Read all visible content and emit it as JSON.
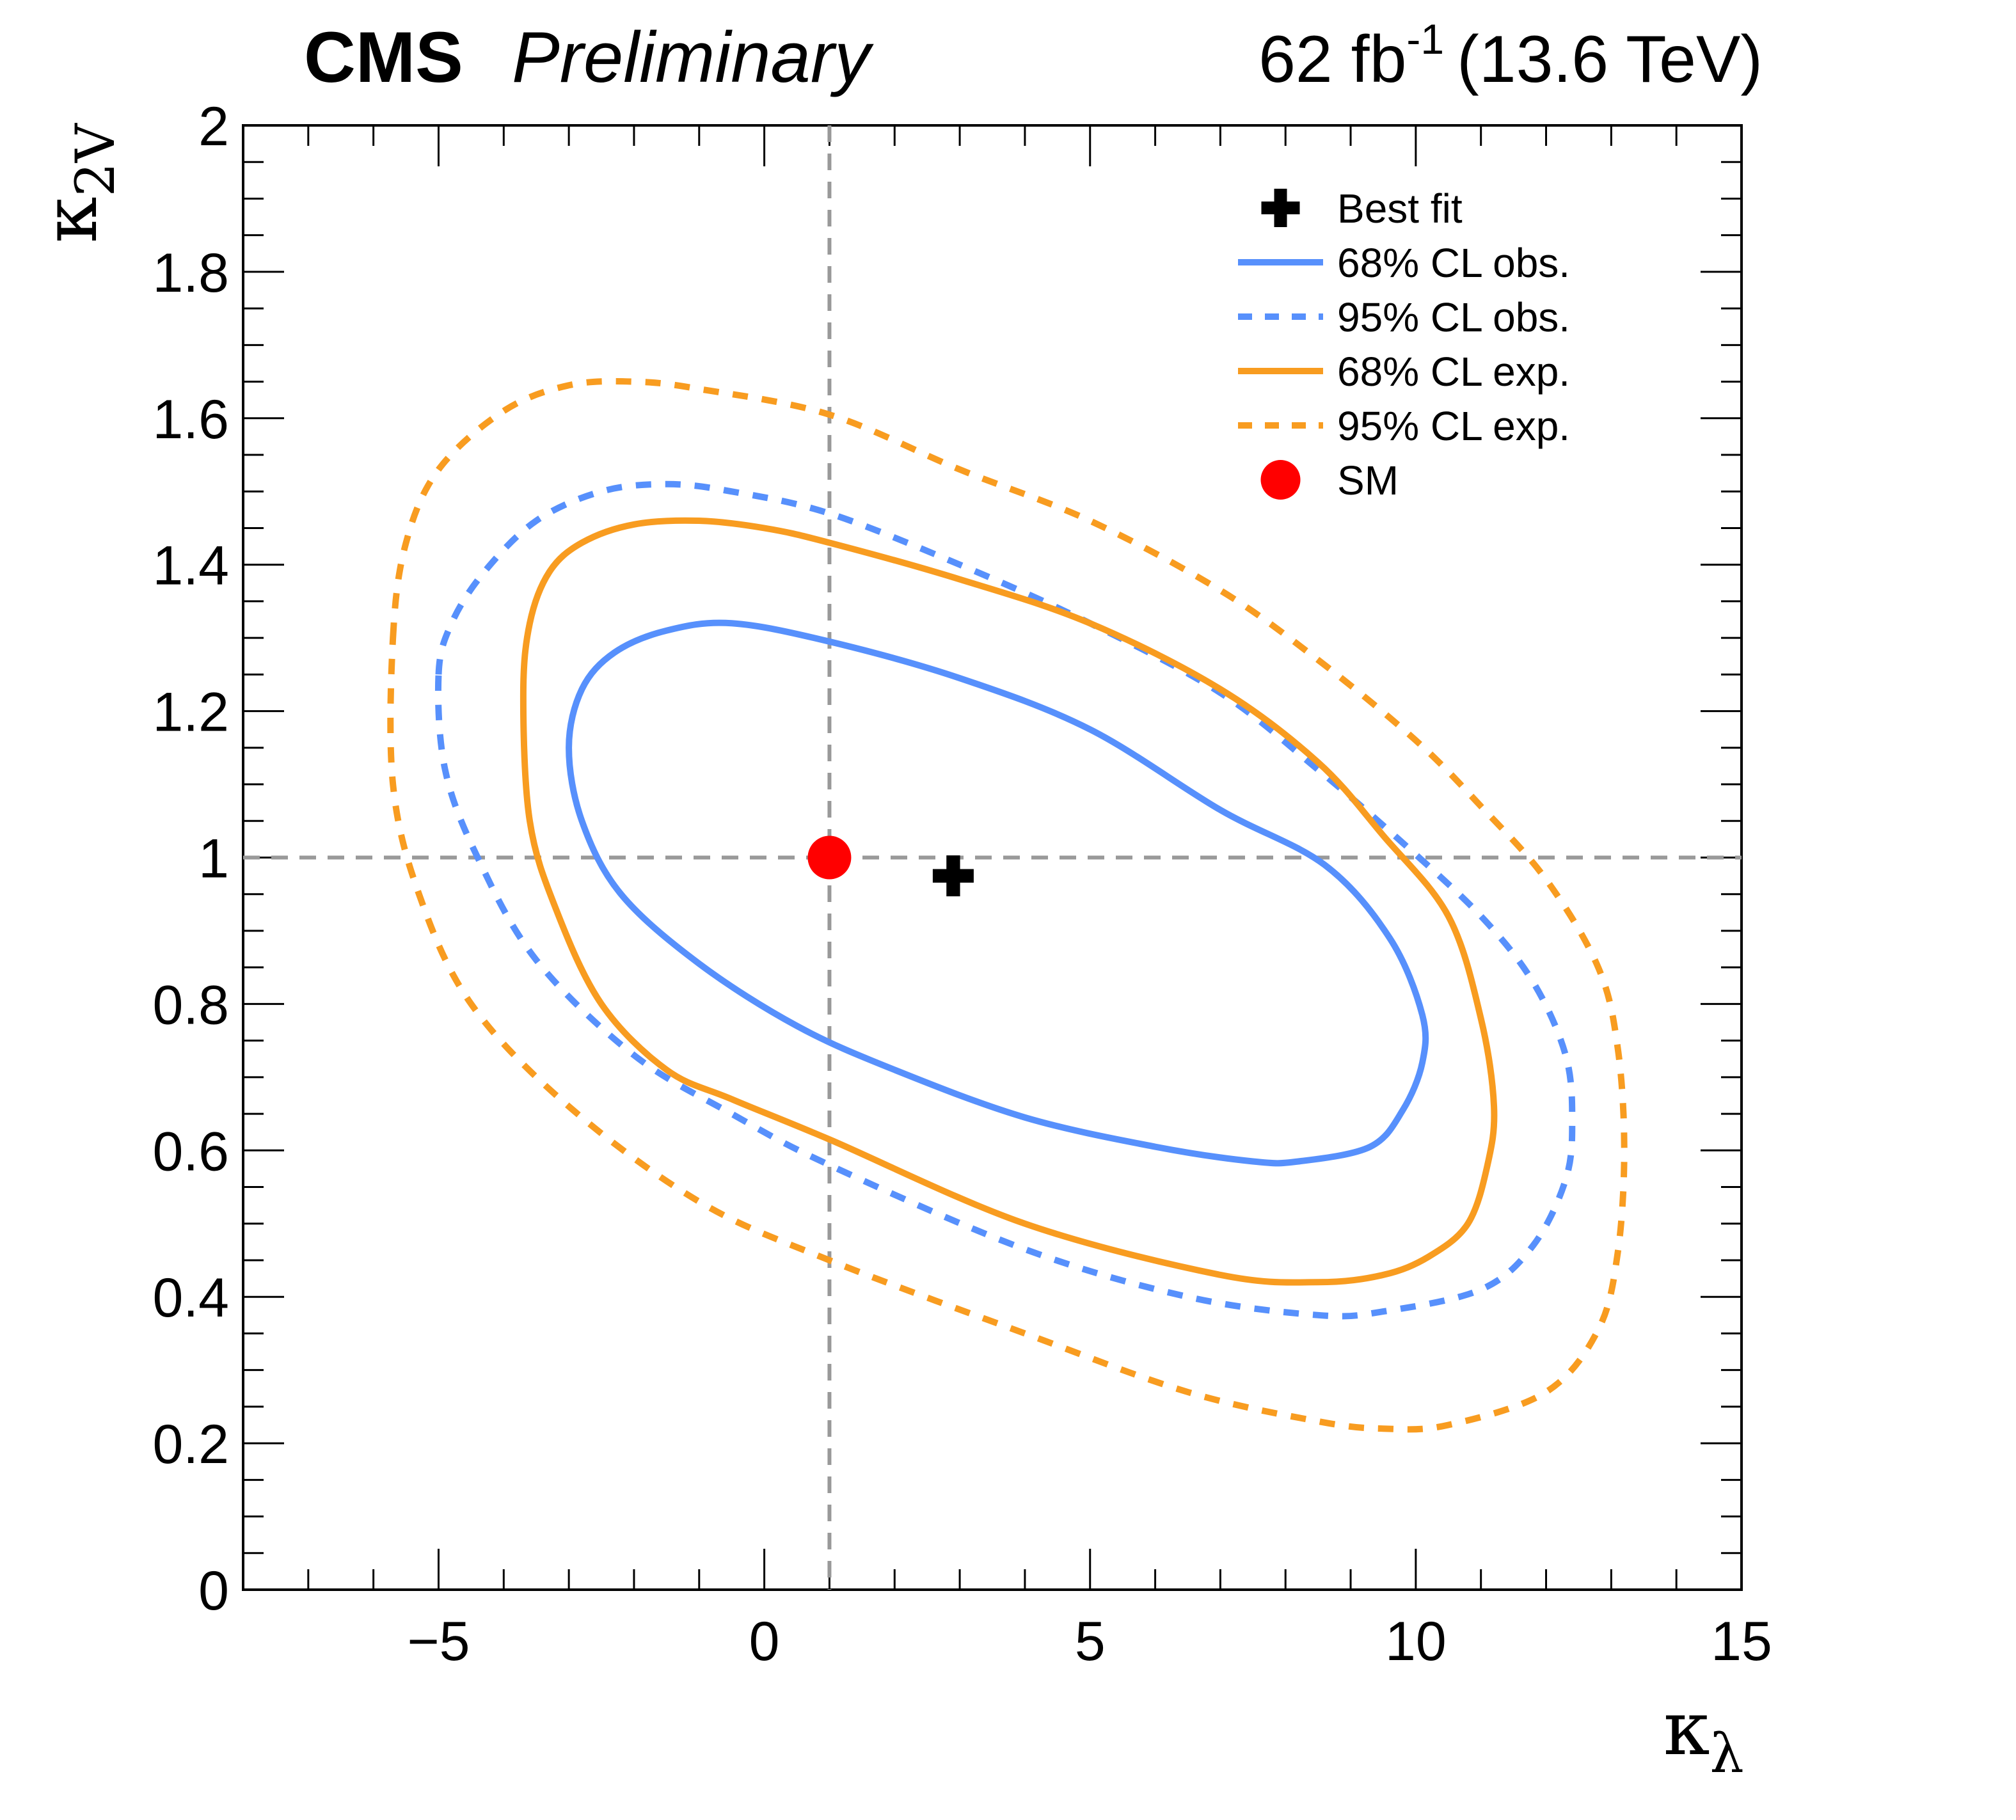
{
  "header": {
    "experiment": "CMS",
    "status": "Preliminary",
    "lumi_value": "62 fb",
    "lumi_exp": "-1",
    "energy": "(13.6 TeV)"
  },
  "chart_data": {
    "type": "line",
    "title": "",
    "xlabel": {
      "symbol": "κ",
      "sub": "λ"
    },
    "ylabel": {
      "symbol": "κ",
      "sub": "2V"
    },
    "xlim": [
      -8,
      15
    ],
    "ylim": [
      0,
      2
    ],
    "x_ticks": [
      {
        "v": -5,
        "label": "−5"
      },
      {
        "v": 0,
        "label": "0"
      },
      {
        "v": 5,
        "label": "5"
      },
      {
        "v": 10,
        "label": "10"
      },
      {
        "v": 15,
        "label": "15"
      }
    ],
    "y_ticks": [
      {
        "v": 0,
        "label": "0"
      },
      {
        "v": 0.2,
        "label": "0.2"
      },
      {
        "v": 0.4,
        "label": "0.4"
      },
      {
        "v": 0.6,
        "label": "0.6"
      },
      {
        "v": 0.8,
        "label": "0.8"
      },
      {
        "v": 1,
        "label": "1"
      },
      {
        "v": 1.2,
        "label": "1.2"
      },
      {
        "v": 1.4,
        "label": "1.4"
      },
      {
        "v": 1.6,
        "label": "1.6"
      },
      {
        "v": 1.8,
        "label": "1.8"
      },
      {
        "v": 2,
        "label": "2"
      }
    ],
    "x_minor_step": 1,
    "y_minor_step": 0.05,
    "reference_lines": {
      "x": 1,
      "y": 1,
      "color": "#999999"
    },
    "best_fit": {
      "x": 2.9,
      "y": 0.975,
      "label": "Best fit",
      "color": "#000000"
    },
    "sm_point": {
      "x": 1,
      "y": 1,
      "label": "SM",
      "color": "#ff0000"
    },
    "series": [
      {
        "name": "68% CL obs.",
        "color": "#5790fc",
        "style": "solid",
        "points": [
          [
            -3.0,
            1.15
          ],
          [
            -2.8,
            1.23
          ],
          [
            -2.3,
            1.28
          ],
          [
            -1.5,
            1.31
          ],
          [
            -0.5,
            1.32
          ],
          [
            1.0,
            1.295
          ],
          [
            3.0,
            1.245
          ],
          [
            5.0,
            1.175
          ],
          [
            7.0,
            1.065
          ],
          [
            8.6,
            0.99
          ],
          [
            9.6,
            0.89
          ],
          [
            10.1,
            0.785
          ],
          [
            10.1,
            0.72
          ],
          [
            9.8,
            0.655
          ],
          [
            9.3,
            0.605
          ],
          [
            8.2,
            0.585
          ],
          [
            7.5,
            0.585
          ],
          [
            6.0,
            0.605
          ],
          [
            4.0,
            0.645
          ],
          [
            2.0,
            0.71
          ],
          [
            0.5,
            0.77
          ],
          [
            -1.0,
            0.855
          ],
          [
            -2.2,
            0.95
          ],
          [
            -2.8,
            1.05
          ],
          [
            -3.0,
            1.15
          ]
        ]
      },
      {
        "name": "95% CL obs.",
        "color": "#5790fc",
        "style": "dashed",
        "points": [
          [
            -5.0,
            1.25
          ],
          [
            -4.8,
            1.32
          ],
          [
            -4.3,
            1.39
          ],
          [
            -3.5,
            1.46
          ],
          [
            -2.5,
            1.5
          ],
          [
            -1.5,
            1.51
          ],
          [
            -0.5,
            1.5
          ],
          [
            1.0,
            1.47
          ],
          [
            3.0,
            1.4
          ],
          [
            5.0,
            1.32
          ],
          [
            7.0,
            1.225
          ],
          [
            8.5,
            1.12
          ],
          [
            9.8,
            1.02
          ],
          [
            11.0,
            0.92
          ],
          [
            11.8,
            0.83
          ],
          [
            12.3,
            0.73
          ],
          [
            12.4,
            0.64
          ],
          [
            12.3,
            0.56
          ],
          [
            11.8,
            0.47
          ],
          [
            11.0,
            0.41
          ],
          [
            9.5,
            0.38
          ],
          [
            8.5,
            0.375
          ],
          [
            6.5,
            0.4
          ],
          [
            4.0,
            0.465
          ],
          [
            1.0,
            0.58
          ],
          [
            -0.5,
            0.65
          ],
          [
            -2.0,
            0.73
          ],
          [
            -3.5,
            0.86
          ],
          [
            -4.4,
            1.0
          ],
          [
            -4.9,
            1.12
          ],
          [
            -5.0,
            1.25
          ]
        ]
      },
      {
        "name": "68% CL exp.",
        "color": "#f89c20",
        "style": "solid",
        "points": [
          [
            -3.7,
            1.22
          ],
          [
            -3.6,
            1.32
          ],
          [
            -3.3,
            1.39
          ],
          [
            -2.8,
            1.43
          ],
          [
            -2.0,
            1.455
          ],
          [
            -1.0,
            1.46
          ],
          [
            0.0,
            1.45
          ],
          [
            1.0,
            1.43
          ],
          [
            3.0,
            1.38
          ],
          [
            5.0,
            1.32
          ],
          [
            7.0,
            1.23
          ],
          [
            8.5,
            1.13
          ],
          [
            9.5,
            1.03
          ],
          [
            10.5,
            0.92
          ],
          [
            11.0,
            0.78
          ],
          [
            11.2,
            0.66
          ],
          [
            11.1,
            0.58
          ],
          [
            10.8,
            0.5
          ],
          [
            10.2,
            0.455
          ],
          [
            9.5,
            0.43
          ],
          [
            8.5,
            0.42
          ],
          [
            7.0,
            0.43
          ],
          [
            4.0,
            0.5
          ],
          [
            1.0,
            0.615
          ],
          [
            -0.5,
            0.67
          ],
          [
            -1.5,
            0.71
          ],
          [
            -2.5,
            0.8
          ],
          [
            -3.2,
            0.93
          ],
          [
            -3.6,
            1.05
          ],
          [
            -3.7,
            1.22
          ]
        ]
      },
      {
        "name": "95% CL exp.",
        "color": "#f89c20",
        "style": "dashed",
        "points": [
          [
            -5.7,
            1.3
          ],
          [
            -5.5,
            1.43
          ],
          [
            -5.0,
            1.53
          ],
          [
            -4.0,
            1.61
          ],
          [
            -3.0,
            1.645
          ],
          [
            -2.0,
            1.65
          ],
          [
            -1.0,
            1.64
          ],
          [
            1.0,
            1.605
          ],
          [
            3.0,
            1.53
          ],
          [
            5.0,
            1.46
          ],
          [
            7.0,
            1.365
          ],
          [
            8.5,
            1.27
          ],
          [
            10.0,
            1.16
          ],
          [
            11.0,
            1.07
          ],
          [
            12.0,
            0.97
          ],
          [
            12.8,
            0.85
          ],
          [
            13.1,
            0.74
          ],
          [
            13.2,
            0.6
          ],
          [
            13.1,
            0.46
          ],
          [
            12.8,
            0.355
          ],
          [
            12.0,
            0.27
          ],
          [
            10.5,
            0.225
          ],
          [
            9.5,
            0.22
          ],
          [
            8.5,
            0.23
          ],
          [
            6.5,
            0.27
          ],
          [
            4.0,
            0.35
          ],
          [
            1.0,
            0.45
          ],
          [
            -1.0,
            0.53
          ],
          [
            -3.0,
            0.66
          ],
          [
            -4.5,
            0.8
          ],
          [
            -5.3,
            0.95
          ],
          [
            -5.7,
            1.1
          ],
          [
            -5.7,
            1.3
          ]
        ]
      }
    ]
  }
}
